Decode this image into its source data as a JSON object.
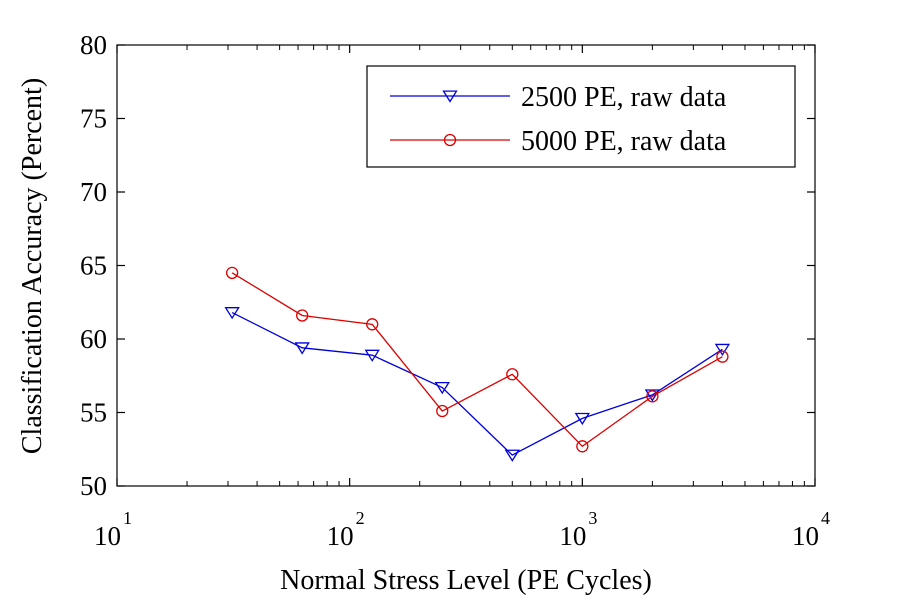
{
  "chart_data": {
    "type": "line",
    "title": "",
    "xlabel": "Normal Stress Level (PE Cycles)",
    "ylabel": "Classification Accuracy (Percent)",
    "xscale": "log",
    "xlim": [
      10,
      10000
    ],
    "ylim": [
      50,
      80
    ],
    "x_ticks": [
      10,
      100,
      1000,
      10000
    ],
    "x_tick_labels": [
      {
        "base": "10",
        "exp": "1"
      },
      {
        "base": "10",
        "exp": "2"
      },
      {
        "base": "10",
        "exp": "3"
      },
      {
        "base": "10",
        "exp": "4"
      }
    ],
    "y_ticks": [
      50,
      55,
      60,
      65,
      70,
      75,
      80
    ],
    "y_tick_labels": [
      "50",
      "55",
      "60",
      "65",
      "70",
      "75",
      "80"
    ],
    "grid": false,
    "legend_position": "top-right",
    "x": [
      31.25,
      62.5,
      125,
      250,
      500,
      1000,
      2000,
      4000
    ],
    "series": [
      {
        "name": "2500 PE, raw data",
        "color": "#0000dd",
        "marker": "triangle-down",
        "values": [
          61.8,
          59.4,
          58.9,
          56.7,
          52.1,
          54.6,
          56.2,
          59.3
        ]
      },
      {
        "name": "5000 PE, raw data",
        "color": "#dd0000",
        "marker": "circle",
        "values": [
          64.5,
          61.6,
          61.0,
          55.1,
          57.6,
          52.7,
          56.1,
          58.8
        ]
      }
    ]
  }
}
